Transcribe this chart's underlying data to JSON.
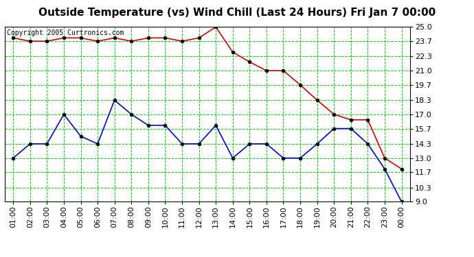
{
  "title": "Outside Temperature (vs) Wind Chill (Last 24 Hours) Fri Jan 7 00:00",
  "copyright": "Copyright 2005 Curtronics.com",
  "x_labels": [
    "01:00",
    "02:00",
    "03:00",
    "04:00",
    "05:00",
    "06:00",
    "07:00",
    "08:00",
    "09:00",
    "10:00",
    "11:00",
    "12:00",
    "13:00",
    "14:00",
    "15:00",
    "16:00",
    "17:00",
    "18:00",
    "19:00",
    "20:00",
    "21:00",
    "22:00",
    "23:00",
    "00:00"
  ],
  "y_ticks": [
    9.0,
    10.3,
    11.7,
    13.0,
    14.3,
    15.7,
    17.0,
    18.3,
    19.7,
    21.0,
    22.3,
    23.7,
    25.0
  ],
  "y_min": 9.0,
  "y_max": 25.0,
  "red_y": [
    24.0,
    23.7,
    23.7,
    24.0,
    24.0,
    23.7,
    24.0,
    23.7,
    24.0,
    24.0,
    23.7,
    24.0,
    25.0,
    22.7,
    21.8,
    21.0,
    21.0,
    19.7,
    18.3,
    17.0,
    16.5,
    16.5,
    13.0,
    12.0
  ],
  "blue_y": [
    13.0,
    14.3,
    14.3,
    17.0,
    15.0,
    14.3,
    18.3,
    17.0,
    16.0,
    16.0,
    14.3,
    14.3,
    16.0,
    13.0,
    14.3,
    14.3,
    13.0,
    13.0,
    14.3,
    15.7,
    15.7,
    14.3,
    12.0,
    9.0
  ],
  "red_color": "#cc0000",
  "blue_color": "#0000cc",
  "bg_color": "#ffffff",
  "grid_color": "#00cc00",
  "title_fontsize": 11,
  "copyright_fontsize": 7,
  "tick_fontsize": 8,
  "marker_size": 3.5
}
